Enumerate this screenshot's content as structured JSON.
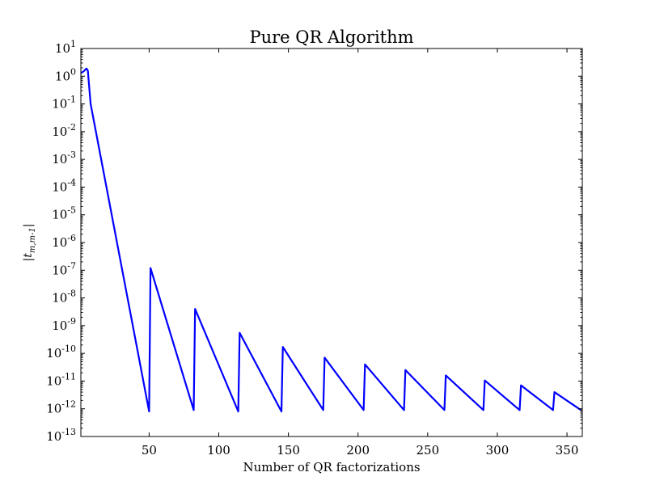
{
  "chart_data": {
    "type": "line",
    "title": "Pure QR Algorithm",
    "xlabel": "Number of QR factorizations",
    "ylabel": "|t_{m,m-1}|",
    "xlim": [
      1,
      361
    ],
    "ylim": [
      1e-13,
      10
    ],
    "yscale": "log",
    "grid": false,
    "x_ticks": [
      50,
      100,
      150,
      200,
      250,
      300,
      350
    ],
    "x_tick_labels": [
      "50",
      "100",
      "150",
      "200",
      "250",
      "300",
      "350"
    ],
    "y_ticks": [
      {
        "value": 10,
        "base": "10",
        "exp": "1"
      },
      {
        "value": 1,
        "base": "10",
        "exp": "0"
      },
      {
        "value": 0.1,
        "base": "10",
        "exp": "-1"
      },
      {
        "value": 0.01,
        "base": "10",
        "exp": "-2"
      },
      {
        "value": 0.001,
        "base": "10",
        "exp": "-3"
      },
      {
        "value": 0.0001,
        "base": "10",
        "exp": "-4"
      },
      {
        "value": 1e-05,
        "base": "10",
        "exp": "-5"
      },
      {
        "value": 1e-06,
        "base": "10",
        "exp": "-6"
      },
      {
        "value": 1e-07,
        "base": "10",
        "exp": "-7"
      },
      {
        "value": 1e-08,
        "base": "10",
        "exp": "-8"
      },
      {
        "value": 1e-09,
        "base": "10",
        "exp": "-9"
      },
      {
        "value": 1e-10,
        "base": "10",
        "exp": "-10"
      },
      {
        "value": 1e-11,
        "base": "10",
        "exp": "-11"
      },
      {
        "value": 1e-12,
        "base": "10",
        "exp": "-12"
      },
      {
        "value": 1e-13,
        "base": "10",
        "exp": "-13"
      }
    ],
    "series": [
      {
        "color": "#0000ff",
        "x": [
          1,
          3,
          5,
          6,
          8,
          50,
          51,
          82,
          83,
          114,
          115,
          145,
          146,
          175,
          176,
          204,
          205,
          233,
          234,
          262,
          263,
          290,
          291,
          316,
          317,
          340,
          341,
          360
        ],
        "y": [
          1.3,
          1.5,
          1.9,
          1.6,
          0.1,
          8e-13,
          1.2e-07,
          9e-13,
          4e-09,
          8e-13,
          5.5e-10,
          8e-13,
          1.7e-10,
          9e-13,
          7e-11,
          9e-13,
          4e-11,
          9e-13,
          2.5e-11,
          9e-13,
          1.6e-11,
          9e-13,
          1.05e-11,
          9e-13,
          7e-12,
          9e-13,
          4e-12,
          9e-13
        ]
      }
    ]
  }
}
